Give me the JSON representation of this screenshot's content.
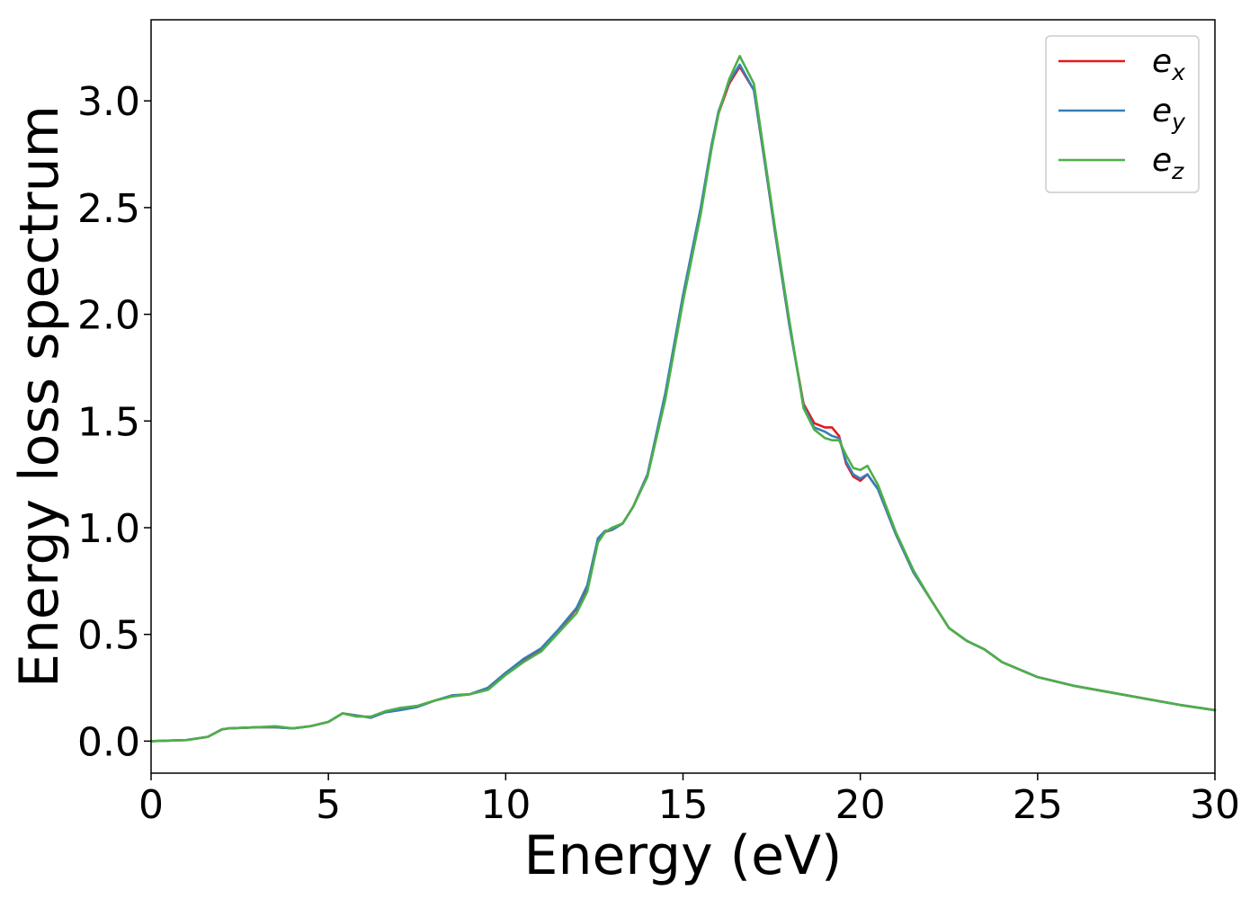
{
  "chart_data": {
    "type": "line",
    "title": "",
    "xlabel": "Energy (eV)",
    "ylabel": "Energy loss spectrum",
    "xlim": [
      0,
      30
    ],
    "ylim": [
      -0.15,
      3.38
    ],
    "xticks": [
      0,
      5,
      10,
      15,
      20,
      25,
      30
    ],
    "xtick_labels": [
      "0",
      "5",
      "10",
      "15",
      "20",
      "25",
      "30"
    ],
    "yticks": [
      0.0,
      0.5,
      1.0,
      1.5,
      2.0,
      2.5,
      3.0
    ],
    "ytick_labels": [
      "0.0",
      "0.5",
      "1.0",
      "1.5",
      "2.0",
      "2.5",
      "3.0"
    ],
    "grid": false,
    "legend_position": "top-right",
    "x": [
      0,
      1.0,
      1.6,
      2.0,
      2.2,
      3.0,
      3.5,
      4.0,
      4.5,
      5.0,
      5.4,
      5.8,
      6.2,
      6.6,
      7.0,
      7.5,
      8.0,
      8.5,
      9.0,
      9.5,
      10.0,
      10.5,
      11.0,
      11.5,
      12.0,
      12.3,
      12.6,
      12.8,
      13.0,
      13.3,
      13.6,
      14.0,
      14.5,
      15.0,
      15.5,
      15.8,
      16.0,
      16.3,
      16.6,
      17.0,
      17.3,
      17.6,
      18.0,
      18.4,
      18.7,
      19.0,
      19.2,
      19.4,
      19.6,
      19.8,
      20.0,
      20.2,
      20.5,
      21.0,
      21.5,
      22.0,
      22.5,
      23.0,
      23.5,
      24.0,
      25.0,
      26.0,
      27.0,
      28.0,
      29.0,
      30.0
    ],
    "series": [
      {
        "name": "ex",
        "color": "#e41a1c",
        "values": [
          0.0,
          0.005,
          0.02,
          0.055,
          0.06,
          0.065,
          0.065,
          0.06,
          0.07,
          0.09,
          0.13,
          0.12,
          0.11,
          0.135,
          0.145,
          0.16,
          0.19,
          0.21,
          0.22,
          0.25,
          0.32,
          0.38,
          0.43,
          0.52,
          0.62,
          0.72,
          0.94,
          0.98,
          0.99,
          1.02,
          1.1,
          1.25,
          1.62,
          2.08,
          2.48,
          2.78,
          2.94,
          3.08,
          3.16,
          3.05,
          2.72,
          2.38,
          1.95,
          1.58,
          1.49,
          1.47,
          1.47,
          1.43,
          1.3,
          1.24,
          1.22,
          1.25,
          1.18,
          0.97,
          0.79,
          0.66,
          0.53,
          0.47,
          0.43,
          0.37,
          0.3,
          0.26,
          0.23,
          0.2,
          0.17,
          0.145
        ]
      },
      {
        "name": "ey",
        "color": "#377eb8",
        "values": [
          0.0,
          0.005,
          0.02,
          0.055,
          0.06,
          0.065,
          0.065,
          0.06,
          0.07,
          0.09,
          0.13,
          0.12,
          0.11,
          0.135,
          0.145,
          0.16,
          0.19,
          0.215,
          0.22,
          0.25,
          0.32,
          0.385,
          0.435,
          0.525,
          0.625,
          0.73,
          0.95,
          0.985,
          0.99,
          1.02,
          1.1,
          1.25,
          1.63,
          2.09,
          2.5,
          2.79,
          2.95,
          3.09,
          3.17,
          3.05,
          2.72,
          2.38,
          1.95,
          1.57,
          1.47,
          1.45,
          1.43,
          1.42,
          1.31,
          1.25,
          1.23,
          1.25,
          1.18,
          0.97,
          0.79,
          0.66,
          0.53,
          0.47,
          0.43,
          0.37,
          0.3,
          0.26,
          0.23,
          0.2,
          0.17,
          0.145
        ]
      },
      {
        "name": "ez",
        "color": "#4daf4a",
        "values": [
          0.0,
          0.005,
          0.02,
          0.055,
          0.06,
          0.065,
          0.07,
          0.06,
          0.07,
          0.09,
          0.13,
          0.115,
          0.115,
          0.14,
          0.155,
          0.165,
          0.19,
          0.21,
          0.22,
          0.24,
          0.31,
          0.37,
          0.42,
          0.51,
          0.6,
          0.7,
          0.93,
          0.98,
          1.0,
          1.02,
          1.1,
          1.24,
          1.6,
          2.06,
          2.47,
          2.77,
          2.94,
          3.1,
          3.21,
          3.08,
          2.74,
          2.4,
          1.97,
          1.56,
          1.46,
          1.42,
          1.41,
          1.41,
          1.34,
          1.28,
          1.27,
          1.29,
          1.2,
          0.98,
          0.8,
          0.66,
          0.53,
          0.47,
          0.43,
          0.37,
          0.3,
          0.26,
          0.23,
          0.2,
          0.17,
          0.145
        ]
      }
    ],
    "legend": [
      {
        "base": "e",
        "sub": "x",
        "color": "#e41a1c"
      },
      {
        "base": "e",
        "sub": "y",
        "color": "#377eb8"
      },
      {
        "base": "e",
        "sub": "z",
        "color": "#4daf4a"
      }
    ]
  }
}
